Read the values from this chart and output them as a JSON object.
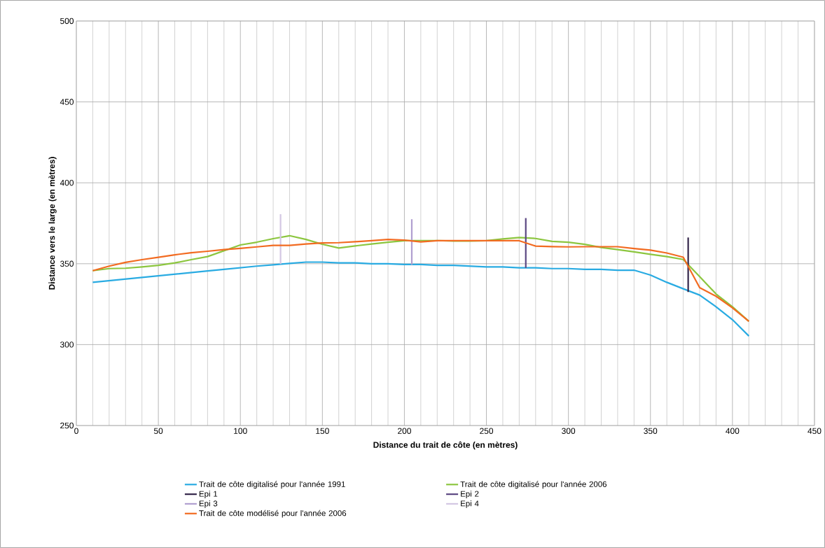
{
  "chart_data": {
    "type": "line",
    "xlabel": "Distance du trait de côte (en mètres)",
    "ylabel": "Distance vers le large (en mètres)",
    "xlim": [
      0,
      450
    ],
    "xticks": [
      0,
      50,
      100,
      150,
      200,
      250,
      300,
      350,
      400,
      450
    ],
    "ylim": [
      250,
      500
    ],
    "yticks": [
      250,
      300,
      350,
      400,
      450,
      500
    ],
    "grid": true,
    "legend": "bottom",
    "marker": "none",
    "line_style": "solid",
    "series": [
      {
        "name": "Trait de côte digitalisé pour l'année 1991",
        "color": "#29abe2",
        "x": [
          10,
          20,
          30,
          40,
          50,
          60,
          70,
          80,
          90,
          100,
          110,
          120,
          130,
          140,
          150,
          160,
          170,
          180,
          190,
          200,
          210,
          220,
          230,
          240,
          250,
          260,
          270,
          280,
          290,
          300,
          310,
          320,
          330,
          340,
          350,
          360,
          370,
          380,
          390,
          400,
          410
        ],
        "values": [
          338.5,
          339.5,
          340.5,
          341.5,
          342.5,
          343.5,
          344.5,
          345.5,
          346.5,
          347.5,
          348.5,
          349.3,
          350.2,
          351,
          351,
          350.5,
          350.5,
          350,
          350,
          349.5,
          349.5,
          349,
          349,
          348.5,
          348,
          348,
          347.5,
          347.5,
          347,
          347,
          346.5,
          346.5,
          346,
          346,
          343,
          338.5,
          334.5,
          330.6,
          323.4,
          315.4,
          305.3
        ]
      },
      {
        "name": "Trait de côte digitalisé pour l'année 2006",
        "color": "#8cc63f",
        "x": [
          10,
          20,
          30,
          40,
          50,
          60,
          70,
          80,
          90,
          100,
          110,
          120,
          130,
          140,
          150,
          160,
          170,
          180,
          190,
          200,
          210,
          220,
          230,
          240,
          250,
          260,
          270,
          280,
          290,
          300,
          310,
          320,
          330,
          340,
          350,
          360,
          370,
          380,
          390,
          400,
          410
        ],
        "values": [
          345.7,
          347,
          347.2,
          348,
          349,
          350.5,
          352.5,
          354.4,
          358,
          361.6,
          363.3,
          365.5,
          367.3,
          365,
          362,
          359.7,
          361,
          362.2,
          363.3,
          364.2,
          364.3,
          364.3,
          364,
          364,
          364.2,
          365.3,
          366.2,
          365.6,
          363.8,
          363.3,
          362,
          360,
          358.7,
          357.3,
          355.8,
          354.4,
          352.6,
          342,
          331.3,
          323.4,
          314.4
        ]
      },
      {
        "name": "Epi 1",
        "color": "#34264a",
        "x": [
          373,
          373
        ],
        "values": [
          332.5,
          366.2
        ]
      },
      {
        "name": "Epi 2",
        "color": "#5b4782",
        "x": [
          274,
          274
        ],
        "values": [
          347.4,
          378.2
        ]
      },
      {
        "name": "Epi 3",
        "color": "#b09fd0",
        "x": [
          204.5,
          204.5
        ],
        "values": [
          349.3,
          377.5
        ]
      },
      {
        "name": "Epi 4",
        "color": "#d3c7e3",
        "x": [
          124.5,
          124.5
        ],
        "values": [
          349.8,
          380.6
        ]
      },
      {
        "name": "Trait de côte modélisé pour l'année 2006",
        "color": "#f26b21",
        "x": [
          10,
          20,
          30,
          40,
          50,
          60,
          70,
          80,
          90,
          100,
          110,
          120,
          130,
          140,
          150,
          160,
          170,
          180,
          190,
          200,
          210,
          220,
          230,
          240,
          250,
          260,
          270,
          280,
          290,
          300,
          310,
          320,
          330,
          340,
          350,
          360,
          370,
          380,
          390,
          400,
          410
        ],
        "values": [
          345.7,
          348.5,
          350.8,
          352.5,
          354,
          355.5,
          356.8,
          357.7,
          358.7,
          359.5,
          360.4,
          361.3,
          361.3,
          362.2,
          362.8,
          363,
          363.6,
          364.2,
          365,
          364.6,
          363.5,
          364.2,
          364.2,
          364.2,
          364.2,
          364.2,
          364.2,
          360.9,
          360.6,
          360.4,
          360.5,
          360.5,
          360.5,
          359.4,
          358.4,
          356.6,
          354,
          335.2,
          329.9,
          322.7,
          314.4
        ]
      }
    ]
  }
}
